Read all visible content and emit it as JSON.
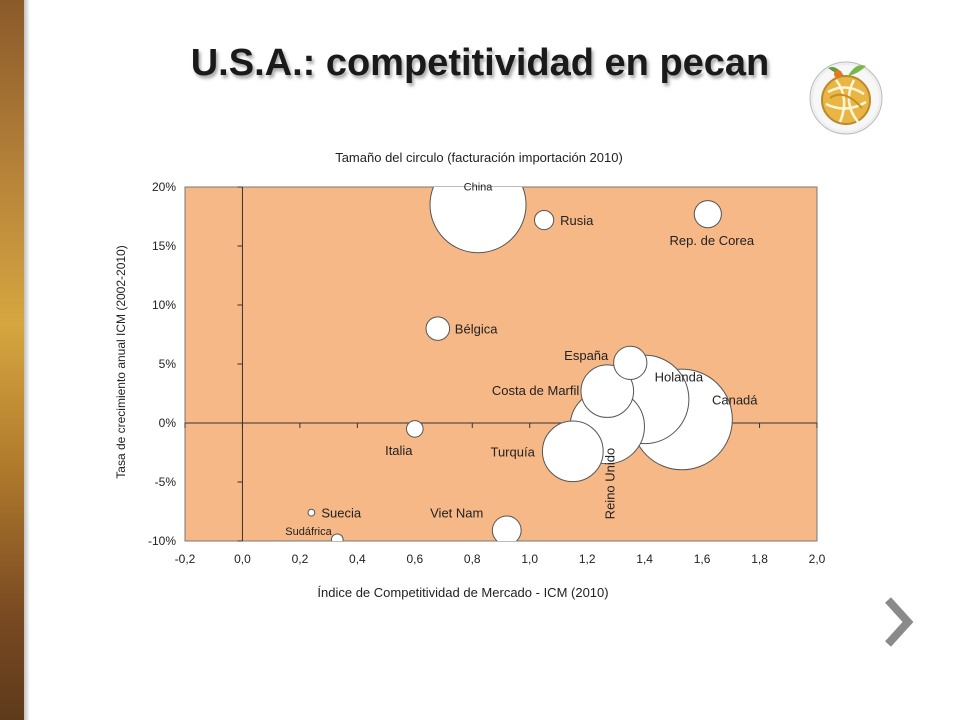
{
  "slide": {
    "title": "U.S.A.: competitividad en pecan",
    "logo_icon": "fruit-globe-logo-icon",
    "next_icon": "chevron-right-icon"
  },
  "colors": {
    "plot_bg": "#F7B887",
    "bubble_fill": "#FFFFFF",
    "bubble_stroke": "#555555",
    "title_color": "#1A1A1A",
    "chevron_color": "#8A8A8A"
  },
  "chart_data": {
    "type": "scatter",
    "title": "Tamaño del circulo (facturación importación 2010)",
    "xlabel": "Índice de Competitividad de Mercado - ICM (2010)",
    "ylabel": "Tasa de crecimiento anual ICM (2002-2010)",
    "xlim": [
      -0.2,
      2.0
    ],
    "ylim": [
      -10,
      20
    ],
    "x_ticks": [
      "-0,2",
      "0,0",
      "0,2",
      "0,4",
      "0,6",
      "0,8",
      "1,0",
      "1,2",
      "1,4",
      "1,6",
      "1,8",
      "2,0"
    ],
    "y_ticks": [
      "-10%",
      "-5%",
      "0%",
      "5%",
      "10%",
      "15%",
      "20%"
    ],
    "grid": false,
    "points": [
      {
        "label": "China",
        "x": 0.82,
        "y": 18.5,
        "size": 100
      },
      {
        "label": "Rusia",
        "x": 1.05,
        "y": 17.2,
        "size": 4
      },
      {
        "label": "Rep. de Corea",
        "x": 1.62,
        "y": 17.7,
        "size": 8
      },
      {
        "label": "Bélgica",
        "x": 0.68,
        "y": 8.0,
        "size": 6
      },
      {
        "label": "España",
        "x": 1.35,
        "y": 5.1,
        "size": 12
      },
      {
        "label": "Costa de Marfil",
        "x": 1.27,
        "y": 2.7,
        "size": 30
      },
      {
        "label": "Holanda",
        "x": 1.4,
        "y": 2.0,
        "size": 85
      },
      {
        "label": "Canadá",
        "x": 1.53,
        "y": 0.3,
        "size": 110
      },
      {
        "label": "Reino Unido",
        "x": 1.27,
        "y": -0.3,
        "size": 60
      },
      {
        "label": "Italia",
        "x": 0.6,
        "y": -0.5,
        "size": 3
      },
      {
        "label": "Turquía",
        "x": 1.15,
        "y": -2.4,
        "size": 40
      },
      {
        "label": "Suecia",
        "x": 0.24,
        "y": -7.6,
        "size": 0.5
      },
      {
        "label": "Viet Nam",
        "x": 0.92,
        "y": -9.1,
        "size": 9
      },
      {
        "label": "Sudáfrica",
        "x": 0.33,
        "y": -9.9,
        "size": 1.5
      }
    ]
  }
}
